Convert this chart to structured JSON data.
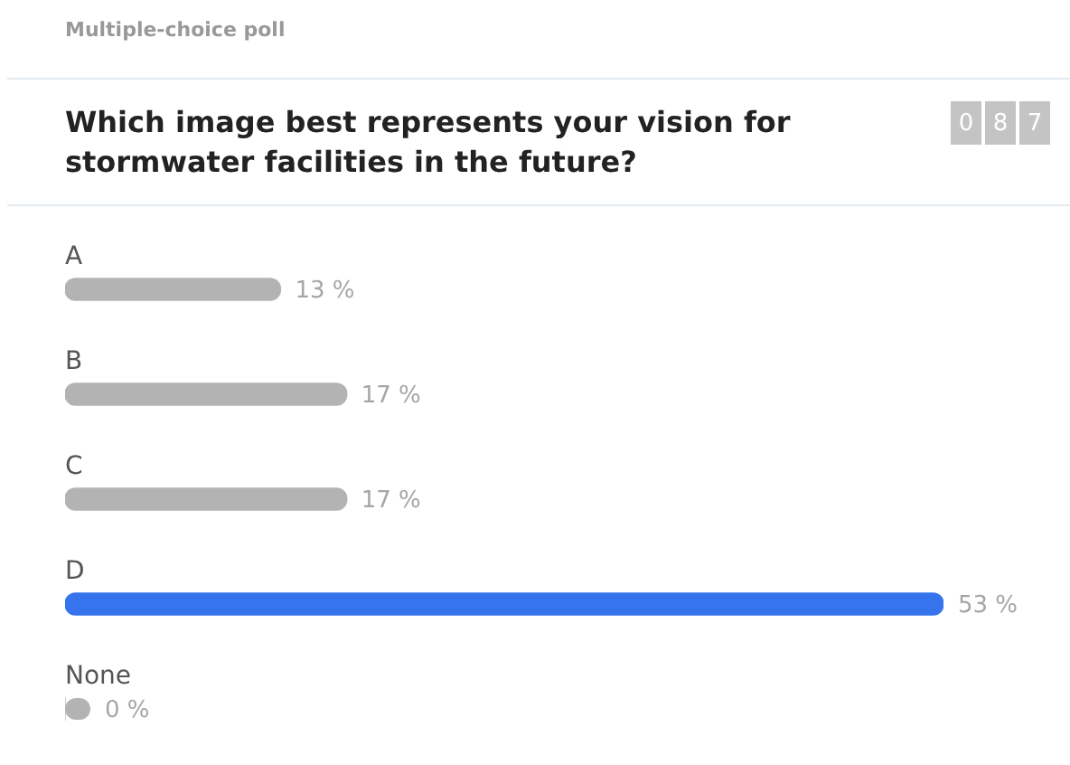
{
  "chart_data": {
    "type": "bar",
    "orientation": "horizontal",
    "subtitle": "Multiple-choice poll",
    "title": "Which image best represents your vision for stormwater facilities in the future?",
    "annotations": [
      "0 8 7"
    ],
    "categories": [
      "A",
      "B",
      "C",
      "D",
      "None"
    ],
    "values": [
      13,
      17,
      17,
      53,
      0
    ],
    "value_labels": [
      "13 %",
      "17 %",
      "17 %",
      "53 %",
      "0 %"
    ],
    "colors": [
      "#b3b3b3",
      "#b3b3b3",
      "#b3b3b3",
      "#3574ec",
      "#b3b3b3"
    ]
  }
}
